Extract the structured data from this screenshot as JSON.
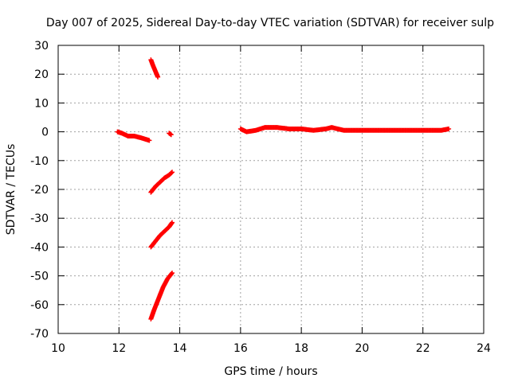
{
  "chart_data": {
    "type": "scatter",
    "title": "Day 007 of 2025, Sidereal Day-to-day VTEC variation (SDTVAR) for receiver sulp",
    "xlabel": "GPS time / hours",
    "ylabel": "SDTVAR / TECUs",
    "xlim": [
      10,
      24
    ],
    "ylim": [
      -70,
      30
    ],
    "x_ticks": [
      10,
      12,
      14,
      16,
      18,
      20,
      22,
      24
    ],
    "y_ticks": [
      30,
      20,
      10,
      0,
      -10,
      -20,
      -30,
      -40,
      -50,
      -60,
      -70
    ],
    "grid": true,
    "legend": "none",
    "marker": "+",
    "series": [
      {
        "name": "SDTVAR",
        "color": "#ff0000",
        "segments": [
          {
            "x": [
              11.95,
              12.1,
              12.3,
              12.5,
              12.7,
              12.85,
              13.0
            ],
            "y": [
              0,
              -0.5,
              -1.5,
              -1.5,
              -2,
              -2.5,
              -3
            ]
          },
          {
            "x": [
              13.05,
              13.12,
              13.2,
              13.28
            ],
            "y": [
              25,
              23,
              21,
              19
            ]
          },
          {
            "x": [
              13.65,
              13.72
            ],
            "y": [
              -0.5,
              -1
            ]
          },
          {
            "x": [
              13.05,
              13.2,
              13.35,
              13.5,
              13.65,
              13.75
            ],
            "y": [
              -21,
              -19,
              -17.5,
              -16,
              -15,
              -14
            ]
          },
          {
            "x": [
              13.05,
              13.2,
              13.35,
              13.5,
              13.65,
              13.75
            ],
            "y": [
              -40,
              -38,
              -36,
              -34.5,
              -33,
              -31.5
            ]
          },
          {
            "x": [
              13.05,
              13.15,
              13.3,
              13.45,
              13.6,
              13.75
            ],
            "y": [
              -65,
              -62,
              -58,
              -54,
              -51,
              -49
            ]
          },
          {
            "x": [
              16.0,
              16.2,
              16.5,
              16.8,
              17.2,
              17.6,
              18.0,
              18.4,
              18.8,
              19.0,
              19.4,
              19.8,
              20.2,
              20.6,
              21.0,
              21.4,
              21.8,
              22.2,
              22.6,
              22.85
            ],
            "y": [
              1,
              0,
              0.5,
              1.5,
              1.5,
              1,
              1,
              0.5,
              1,
              1.5,
              0.5,
              0.5,
              0.5,
              0.5,
              0.5,
              0.5,
              0.5,
              0.5,
              0.5,
              1
            ]
          }
        ]
      }
    ]
  }
}
